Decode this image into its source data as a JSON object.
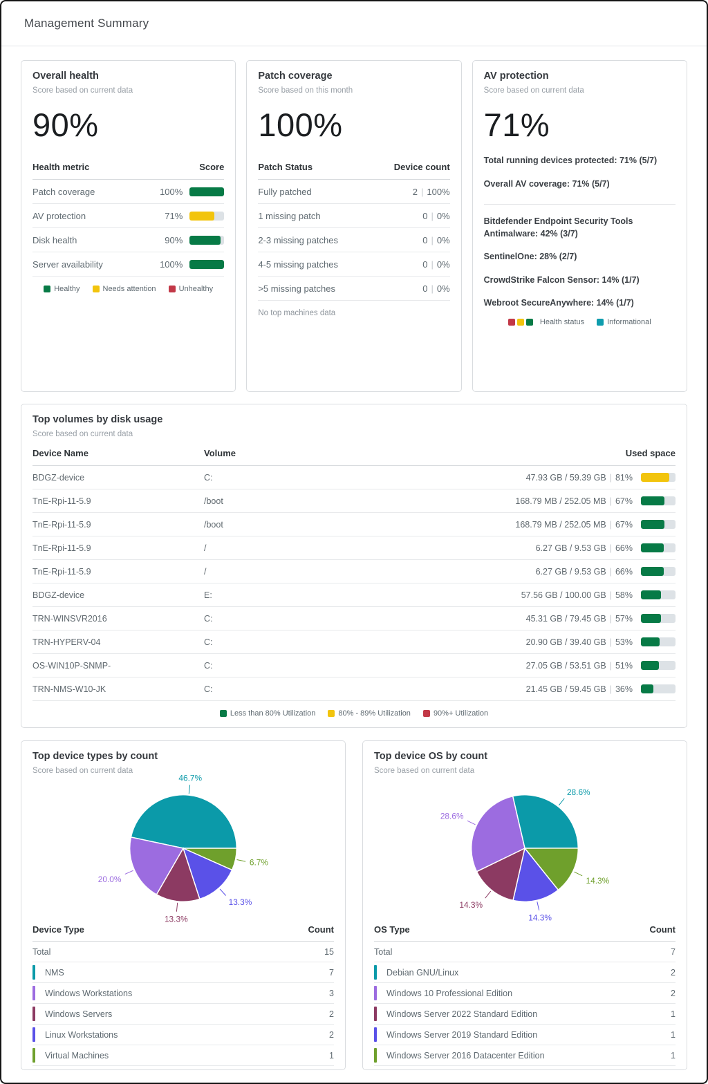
{
  "page": {
    "title": "Management Summary"
  },
  "colors": {
    "green": "#077A46",
    "yellow": "#F2C40D",
    "red": "#C23847",
    "teal": "#0E9CAD",
    "track": "#DDE2E6"
  },
  "overall_health": {
    "title": "Overall health",
    "subtitle": "Score based on current data",
    "score": "90%",
    "col_metric": "Health metric",
    "col_score": "Score",
    "rows": [
      {
        "label": "Patch coverage",
        "value": "100%",
        "pct": 100,
        "color": "green"
      },
      {
        "label": "AV protection",
        "value": "71%",
        "pct": 71,
        "color": "yellow"
      },
      {
        "label": "Disk health",
        "value": "90%",
        "pct": 90,
        "color": "green"
      },
      {
        "label": "Server availability",
        "value": "100%",
        "pct": 100,
        "color": "green"
      }
    ],
    "legend": [
      {
        "label": "Healthy",
        "color": "#077A46"
      },
      {
        "label": "Needs attention",
        "color": "#F2C40D"
      },
      {
        "label": "Unhealthy",
        "color": "#C23847"
      }
    ]
  },
  "patch_coverage": {
    "title": "Patch coverage",
    "subtitle": "Score based on this month",
    "score": "100%",
    "col_status": "Patch Status",
    "col_count": "Device count",
    "rows": [
      {
        "label": "Fully patched",
        "count": "2",
        "pct": "100%"
      },
      {
        "label": "1 missing patch",
        "count": "0",
        "pct": "0%"
      },
      {
        "label": "2-3 missing patches",
        "count": "0",
        "pct": "0%"
      },
      {
        "label": "4-5 missing patches",
        "count": "0",
        "pct": "0%"
      },
      {
        "label": ">5 missing patches",
        "count": "0",
        "pct": "0%"
      }
    ],
    "footnote": "No top machines data"
  },
  "av_protection": {
    "title": "AV protection",
    "subtitle": "Score based on current data",
    "score": "71%",
    "summary_bars": [
      {
        "label": "Total running devices protected: 71% (5/7)",
        "pct": 71,
        "color": "yellow"
      },
      {
        "label": "Overall AV coverage: 71% (5/7)",
        "pct": 71,
        "color": "yellow"
      }
    ],
    "product_bars": [
      {
        "label": "Bitdefender Endpoint Security Tools Antimalware: 42% (3/7)",
        "pct": 42,
        "color": "teal"
      },
      {
        "label": "SentinelOne: 28% (2/7)",
        "pct": 28,
        "color": "teal"
      },
      {
        "label": "CrowdStrike Falcon Sensor: 14% (1/7)",
        "pct": 14,
        "color": "teal"
      },
      {
        "label": "Webroot SecureAnywhere: 14% (1/7)",
        "pct": 14,
        "color": "teal"
      }
    ],
    "legend": {
      "health_colors": [
        "#C23847",
        "#F2C40D",
        "#077A46"
      ],
      "health_label": "Health status",
      "info_color": "#0E9CAD",
      "info_label": "Informational"
    }
  },
  "disk_usage": {
    "title": "Top volumes by disk usage",
    "subtitle": "Score based on current data",
    "col_device": "Device Name",
    "col_volume": "Volume",
    "col_used": "Used space",
    "rows": [
      {
        "device": "BDGZ-device",
        "volume": "C:",
        "used": "47.93 GB / 59.39 GB",
        "pct": "81%",
        "pct_num": 81,
        "color": "yellow"
      },
      {
        "device": "TnE-Rpi-11-5.9",
        "volume": "/boot",
        "used": "168.79 MB / 252.05 MB",
        "pct": "67%",
        "pct_num": 67,
        "color": "green"
      },
      {
        "device": "TnE-Rpi-11-5.9",
        "volume": "/boot",
        "used": "168.79 MB / 252.05 MB",
        "pct": "67%",
        "pct_num": 67,
        "color": "green"
      },
      {
        "device": "TnE-Rpi-11-5.9",
        "volume": "/",
        "used": "6.27 GB / 9.53 GB",
        "pct": "66%",
        "pct_num": 66,
        "color": "green"
      },
      {
        "device": "TnE-Rpi-11-5.9",
        "volume": "/",
        "used": "6.27 GB / 9.53 GB",
        "pct": "66%",
        "pct_num": 66,
        "color": "green"
      },
      {
        "device": "BDGZ-device",
        "volume": "E:",
        "used": "57.56 GB / 100.00 GB",
        "pct": "58%",
        "pct_num": 58,
        "color": "green"
      },
      {
        "device": "TRN-WINSVR2016",
        "volume": "C:",
        "used": "45.31 GB / 79.45 GB",
        "pct": "57%",
        "pct_num": 57,
        "color": "green"
      },
      {
        "device": "TRN-HYPERV-04",
        "volume": "C:",
        "used": "20.90 GB / 39.40 GB",
        "pct": "53%",
        "pct_num": 53,
        "color": "green"
      },
      {
        "device": "OS-WIN10P-SNMP-",
        "volume": "C:",
        "used": "27.05 GB / 53.51 GB",
        "pct": "51%",
        "pct_num": 51,
        "color": "green"
      },
      {
        "device": "TRN-NMS-W10-JK",
        "volume": "C:",
        "used": "21.45 GB / 59.45 GB",
        "pct": "36%",
        "pct_num": 36,
        "color": "green"
      }
    ],
    "legend": [
      {
        "label": "Less than 80% Utilization",
        "color": "#077A46"
      },
      {
        "label": "80% - 89% Utilization",
        "color": "#F2C40D"
      },
      {
        "label": "90%+ Utilization",
        "color": "#C23847"
      }
    ]
  },
  "chart_data": [
    {
      "type": "pie",
      "title": "Top device types by count",
      "subtitle": "Score based on current data",
      "start_angle": -78,
      "slices": [
        {
          "label": "NMS",
          "value": 7,
          "pct_label": "46.7%",
          "color": "#0B9AA9"
        },
        {
          "label": "Virtual Machines",
          "value": 1,
          "pct_label": "6.7%",
          "color": "#6FA02C"
        },
        {
          "label": "Linux Workstations",
          "value": 2,
          "pct_label": "13.3%",
          "color": "#5A51E8"
        },
        {
          "label": "Windows Servers",
          "value": 2,
          "pct_label": "13.3%",
          "color": "#8C3A62"
        },
        {
          "label": "Windows Workstations",
          "value": 3,
          "pct_label": "20.0%",
          "color": "#9C6CE0"
        }
      ],
      "table": {
        "col_label": "Device Type",
        "col_count": "Count",
        "total_label": "Total",
        "total_value": "15",
        "rows": [
          {
            "label": "NMS",
            "count": "7",
            "color": "#0B9AA9"
          },
          {
            "label": "Windows Workstations",
            "count": "3",
            "color": "#9C6CE0"
          },
          {
            "label": "Windows Servers",
            "count": "2",
            "color": "#8C3A62"
          },
          {
            "label": "Linux Workstations",
            "count": "2",
            "color": "#5A51E8"
          },
          {
            "label": "Virtual Machines",
            "count": "1",
            "color": "#6FA02C"
          }
        ]
      }
    },
    {
      "type": "pie",
      "title": "Top device OS by count",
      "subtitle": "Score based on current data",
      "start_angle": -13,
      "slices": [
        {
          "label": "Debian GNU/Linux",
          "value": 2,
          "pct_label": "28.6%",
          "color": "#0B9AA9"
        },
        {
          "label": "Windows Server 2016 Datacenter Edition",
          "value": 1,
          "pct_label": "14.3%",
          "color": "#6FA02C"
        },
        {
          "label": "Windows Server 2019 Standard Edition",
          "value": 1,
          "pct_label": "14.3%",
          "color": "#5A51E8"
        },
        {
          "label": "Windows Server 2022 Standard Edition",
          "value": 1,
          "pct_label": "14.3%",
          "color": "#8C3A62"
        },
        {
          "label": "Windows 10 Professional Edition",
          "value": 2,
          "pct_label": "28.6%",
          "color": "#9C6CE0"
        }
      ],
      "table": {
        "col_label": "OS Type",
        "col_count": "Count",
        "total_label": "Total",
        "total_value": "7",
        "rows": [
          {
            "label": "Debian GNU/Linux",
            "count": "2",
            "color": "#0B9AA9"
          },
          {
            "label": "Windows 10 Professional Edition",
            "count": "2",
            "color": "#9C6CE0"
          },
          {
            "label": "Windows Server 2022 Standard Edition",
            "count": "1",
            "color": "#8C3A62"
          },
          {
            "label": "Windows Server 2019 Standard Edition",
            "count": "1",
            "color": "#5A51E8"
          },
          {
            "label": "Windows Server 2016 Datacenter Edition",
            "count": "1",
            "color": "#6FA02C"
          }
        ]
      }
    }
  ]
}
